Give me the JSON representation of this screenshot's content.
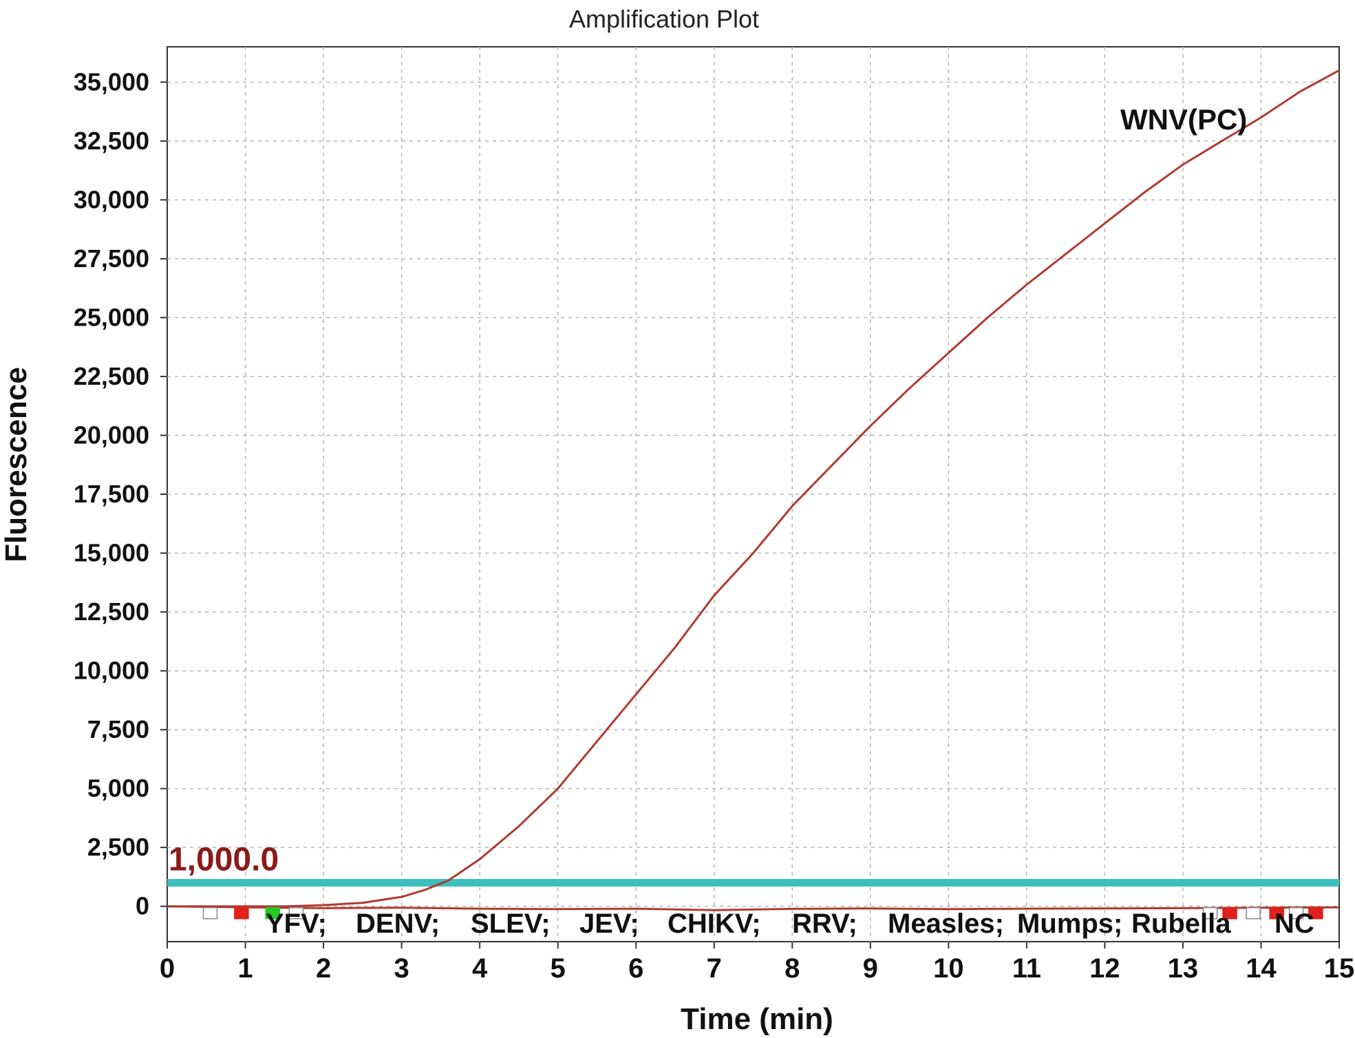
{
  "chart_data": {
    "type": "line",
    "title": "Amplification Plot",
    "xlabel": "Time (min)",
    "ylabel": "Fluorescence",
    "xlim": [
      0,
      15
    ],
    "ylim": [
      -1500,
      36500
    ],
    "x_ticks": [
      "0",
      "1",
      "2",
      "3",
      "4",
      "5",
      "6",
      "7",
      "8",
      "9",
      "10",
      "11",
      "12",
      "13",
      "14",
      "15"
    ],
    "y_ticks": [
      "0",
      "2,500",
      "5,000",
      "7,500",
      "10,000",
      "12,500",
      "15,000",
      "17,500",
      "20,000",
      "22,500",
      "25,000",
      "27,500",
      "30,000",
      "32,500",
      "35,000"
    ],
    "grid": true,
    "threshold": {
      "value": 1000,
      "label": "1,000.0",
      "color": "#3dbfbf"
    },
    "series": [
      {
        "name": "WNV(PC)",
        "color": "#b03a30",
        "x": [
          0,
          0.5,
          1,
          1.5,
          2,
          2.5,
          3,
          3.3,
          3.6,
          4,
          4.5,
          5,
          5.5,
          6,
          6.5,
          7,
          7.5,
          8,
          8.5,
          9,
          9.5,
          10,
          10.5,
          11,
          11.5,
          12,
          12.5,
          13,
          13.5,
          14,
          14.5,
          15
        ],
        "y": [
          0,
          0,
          0,
          0,
          50,
          150,
          400,
          700,
          1100,
          2000,
          3400,
          5000,
          7000,
          9000,
          11000,
          13200,
          15000,
          17000,
          18700,
          20400,
          22000,
          23500,
          25000,
          26400,
          27700,
          29000,
          30300,
          31500,
          32500,
          33500,
          34600,
          35500
        ]
      },
      {
        "name": "YFV; DENV; SLEV; JEV; CHIKV; RRV; Measles; Mumps; Rubella NC",
        "color": "#b03a30",
        "x": [
          0,
          1,
          2,
          3,
          4,
          5,
          6,
          7,
          8,
          9,
          10,
          11,
          12,
          13,
          14,
          15
        ],
        "y": [
          0,
          -40,
          -80,
          -60,
          -100,
          -120,
          -100,
          -160,
          -110,
          -90,
          -120,
          -100,
          -90,
          -80,
          -60,
          -40
        ]
      }
    ],
    "series_labels": {
      "positive": "WNV(PC)",
      "negatives": [
        "YFV;",
        "DENV;",
        "SLEV;",
        "JEV;",
        "CHIKV;",
        "RRV;",
        "Measles;",
        "Mumps;",
        "Rubella",
        "NC"
      ]
    },
    "markers": [
      {
        "x": 0.55,
        "color": "#ffffff"
      },
      {
        "x": 0.95,
        "color": "#e0201a"
      },
      {
        "x": 1.35,
        "color": "#22cc22"
      },
      {
        "x": 1.65,
        "color": "#ffffff"
      },
      {
        "x": 13.35,
        "color": "#ffffff"
      },
      {
        "x": 13.6,
        "color": "#e0201a"
      },
      {
        "x": 13.9,
        "color": "#ffffff"
      },
      {
        "x": 14.2,
        "color": "#e0201a"
      },
      {
        "x": 14.45,
        "color": "#ffffff"
      },
      {
        "x": 14.7,
        "color": "#e0201a"
      }
    ]
  }
}
